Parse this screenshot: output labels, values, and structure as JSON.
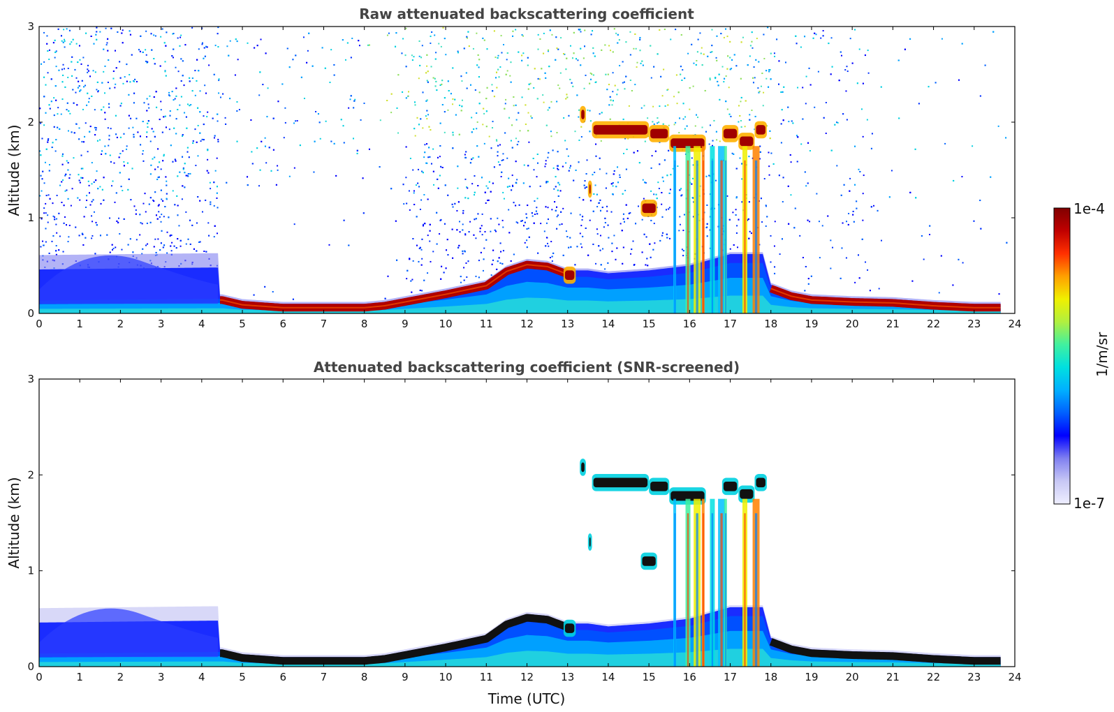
{
  "chart_data": [
    {
      "type": "heatmap",
      "title": "Raw attenuated backscattering coefficient",
      "xlabel": "",
      "ylabel": "Altitude (km)",
      "xlim": [
        0,
        24
      ],
      "ylim": [
        0,
        3
      ],
      "x_ticks": [
        "0",
        "1",
        "2",
        "3",
        "4",
        "5",
        "6",
        "7",
        "8",
        "9",
        "10",
        "11",
        "12",
        "13",
        "14",
        "15",
        "16",
        "17",
        "18",
        "19",
        "20",
        "21",
        "22",
        "23",
        "24"
      ],
      "y_ticks": [
        "0",
        "1",
        "2",
        "3"
      ],
      "features": {
        "boundary_layer_top_km": [
          [
            0.0,
            0.16
          ],
          [
            4.3,
            0.18
          ],
          [
            4.5,
            0.18
          ],
          [
            5,
            0.13
          ],
          [
            6,
            0.1
          ],
          [
            7,
            0.1
          ],
          [
            8,
            0.1
          ],
          [
            8.5,
            0.12
          ],
          [
            9,
            0.16
          ],
          [
            10,
            0.24
          ],
          [
            11,
            0.33
          ],
          [
            11.5,
            0.48
          ],
          [
            12,
            0.55
          ],
          [
            12.5,
            0.53
          ],
          [
            13,
            0.45
          ],
          [
            13.5,
            0.45
          ],
          [
            14,
            0.42
          ],
          [
            15,
            0.45
          ],
          [
            16,
            0.5
          ],
          [
            17,
            0.62
          ],
          [
            17.8,
            0.62
          ],
          [
            18,
            0.3
          ],
          [
            18.5,
            0.22
          ],
          [
            19,
            0.18
          ],
          [
            20,
            0.16
          ],
          [
            21,
            0.15
          ],
          [
            22,
            0.12
          ],
          [
            23,
            0.1
          ],
          [
            23.65,
            0.1
          ]
        ],
        "clouds_km": [
          {
            "t": [
              13.6,
              15.0
            ],
            "alt": 1.92
          },
          {
            "t": [
              15.0,
              15.5
            ],
            "alt": 1.88
          },
          {
            "t": [
              15.5,
              16.4
            ],
            "alt": 1.78
          },
          {
            "t": [
              16.8,
              17.2
            ],
            "alt": 1.88
          },
          {
            "t": [
              17.2,
              17.6
            ],
            "alt": 1.8
          },
          {
            "t": [
              17.6,
              17.9
            ],
            "alt": 1.92
          },
          {
            "t": [
              13.3,
              13.45
            ],
            "alt": 2.08
          },
          {
            "t": [
              13.5,
              13.6
            ],
            "alt": 1.3
          },
          {
            "t": [
              14.8,
              15.2
            ],
            "alt": 1.1
          },
          {
            "t": [
              12.9,
              13.2
            ],
            "alt": 0.4
          }
        ],
        "precipitation_hours": [
          15.6,
          15.9,
          16.1,
          16.3,
          16.5,
          16.7,
          16.85,
          17.3,
          17.55
        ]
      }
    },
    {
      "type": "heatmap",
      "title": "Attenuated backscattering coefficient (SNR-screened)",
      "xlabel": "Time (UTC)",
      "ylabel": "Altitude (km)",
      "xlim": [
        0,
        24
      ],
      "ylim": [
        0,
        3
      ],
      "x_ticks": [
        "0",
        "1",
        "2",
        "3",
        "4",
        "5",
        "6",
        "7",
        "8",
        "9",
        "10",
        "11",
        "12",
        "13",
        "14",
        "15",
        "16",
        "17",
        "18",
        "19",
        "20",
        "21",
        "22",
        "23",
        "24"
      ],
      "y_ticks": [
        "0",
        "1",
        "2",
        "3"
      ]
    }
  ],
  "colorbar": {
    "label": "1/m/sr",
    "max_label": "1e-4",
    "min_label": "1e-7",
    "scale": "log",
    "colormap": [
      "#eeeeff",
      "#c8c8f5",
      "#8080f0",
      "#0000ff",
      "#0060ff",
      "#00b0ff",
      "#00e0e0",
      "#40f0a0",
      "#b0f040",
      "#f0f000",
      "#ffa000",
      "#ff3000",
      "#c00000",
      "#800000"
    ]
  }
}
